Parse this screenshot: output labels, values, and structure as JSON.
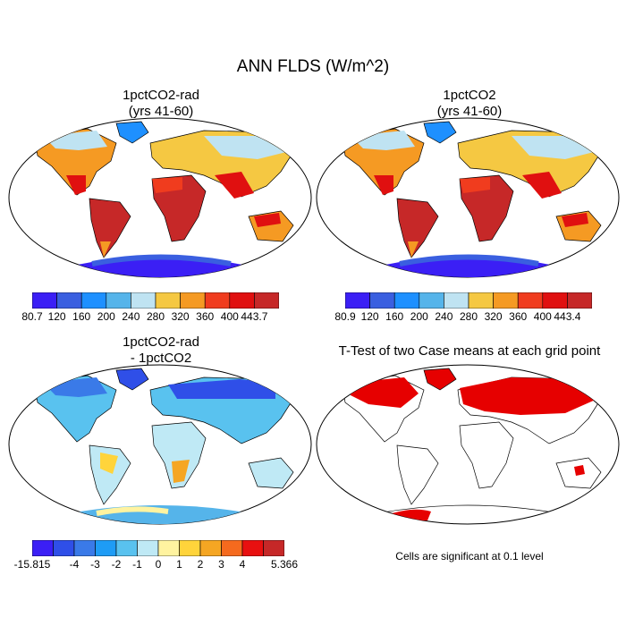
{
  "main_title": "ANN FLDS (W/m^2)",
  "panels": [
    {
      "title_line1": "1pctCO2-rad",
      "title_line2": "(yrs 41-60)"
    },
    {
      "title_line1": "1pctCO2",
      "title_line2": "(yrs 41-60)"
    },
    {
      "title_line1": "1pctCO2-rad",
      "title_line2": "- 1pctCO2"
    },
    {
      "title_line1": "T-Test of two Case means at each grid point",
      "title_line2": ""
    }
  ],
  "colorbars": {
    "a": {
      "labels": [
        "80.7",
        "120",
        "160",
        "200",
        "240",
        "280",
        "320",
        "360",
        "400",
        "443.7"
      ],
      "colors": [
        "#3b1ff5",
        "#3a5fe0",
        "#1e90ff",
        "#55b4ea",
        "#bfe3f2",
        "#f5c842",
        "#f59a23",
        "#f03c1e",
        "#e01010",
        "#c62828"
      ]
    },
    "b": {
      "labels": [
        "80.9",
        "120",
        "160",
        "200",
        "240",
        "280",
        "320",
        "360",
        "400",
        "443.4"
      ],
      "colors": [
        "#3b1ff5",
        "#3a5fe0",
        "#1e90ff",
        "#55b4ea",
        "#bfe3f2",
        "#f5c842",
        "#f59a23",
        "#f03c1e",
        "#e01010",
        "#c62828"
      ]
    },
    "c": {
      "labels": [
        "-15.815",
        "-4",
        "-3",
        "-2",
        "-1",
        "0",
        "1",
        "2",
        "3",
        "4",
        "5.366"
      ],
      "colors": [
        "#3b1ff5",
        "#2f4fe8",
        "#3a7ae8",
        "#1e9cf5",
        "#59c2ef",
        "#bfe9f5",
        "#fff3a0",
        "#ffd43b",
        "#f5a623",
        "#f56a1e",
        "#e81010",
        "#c62828"
      ]
    }
  },
  "note": "Cells are significant at 0.1 level",
  "colors": {
    "land_outline": "#000000",
    "significant": "#e60000"
  }
}
